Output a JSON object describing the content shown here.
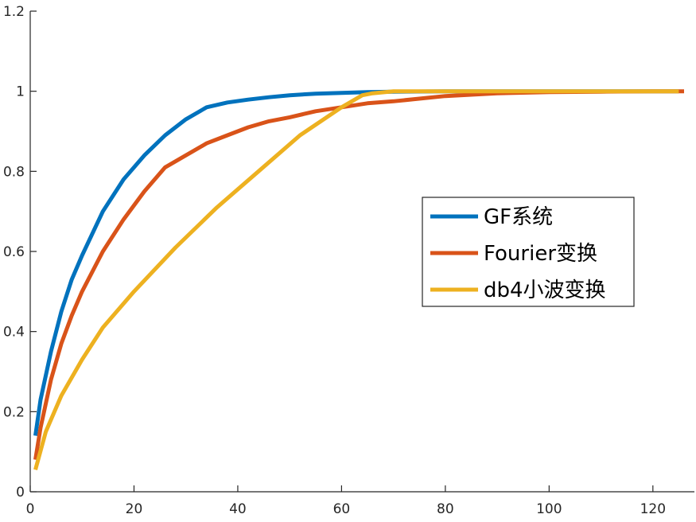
{
  "chart_data": {
    "type": "line",
    "title": "",
    "xlabel": "",
    "ylabel": "",
    "xlim": [
      0,
      128
    ],
    "ylim": [
      0,
      1.2
    ],
    "xticks": [
      0,
      20,
      40,
      60,
      80,
      100,
      120
    ],
    "yticks": [
      0,
      0.2,
      0.4,
      0.6,
      0.8,
      1,
      1.2
    ],
    "xtick_labels": [
      "0",
      "20",
      "40",
      "60",
      "80",
      "100",
      "120"
    ],
    "ytick_labels": [
      "0",
      "0.2",
      "0.4",
      "0.6",
      "0.8",
      "1",
      "1.2"
    ],
    "grid": false,
    "legend_position": "right-center",
    "series": [
      {
        "name": "GF系统",
        "color": "#0072BD",
        "x": [
          1,
          2,
          4,
          6,
          8,
          10,
          14,
          18,
          22,
          26,
          30,
          34,
          38,
          42,
          46,
          50,
          55,
          60,
          65,
          70,
          80,
          90,
          100,
          110,
          120,
          125
        ],
        "y": [
          0.14,
          0.23,
          0.35,
          0.45,
          0.53,
          0.59,
          0.7,
          0.78,
          0.84,
          0.89,
          0.93,
          0.96,
          0.972,
          0.979,
          0.985,
          0.99,
          0.994,
          0.996,
          0.998,
          0.999,
          1.0,
          1.0,
          1.0,
          1.0,
          1.0,
          1.0
        ]
      },
      {
        "name": "Fourier变换",
        "color": "#D95319",
        "x": [
          1,
          2,
          4,
          6,
          8,
          10,
          14,
          18,
          22,
          26,
          30,
          34,
          38,
          42,
          46,
          50,
          55,
          60,
          65,
          70,
          80,
          90,
          100,
          110,
          120,
          126
        ],
        "y": [
          0.08,
          0.16,
          0.28,
          0.37,
          0.44,
          0.5,
          0.6,
          0.68,
          0.75,
          0.81,
          0.84,
          0.87,
          0.89,
          0.91,
          0.925,
          0.935,
          0.95,
          0.96,
          0.97,
          0.975,
          0.988,
          0.995,
          0.998,
          0.999,
          1.0,
          1.0
        ]
      },
      {
        "name": "db4小波变换",
        "color": "#EDB120",
        "x": [
          1,
          3,
          6,
          10,
          14,
          20,
          28,
          36,
          44,
          52,
          60,
          64,
          66,
          70,
          80,
          90,
          100,
          110,
          120,
          125
        ],
        "y": [
          0.055,
          0.15,
          0.24,
          0.33,
          0.41,
          0.5,
          0.61,
          0.71,
          0.8,
          0.89,
          0.96,
          0.99,
          0.995,
          1.0,
          1.0,
          1.0,
          1.0,
          1.0,
          1.0,
          1.0
        ]
      }
    ]
  }
}
